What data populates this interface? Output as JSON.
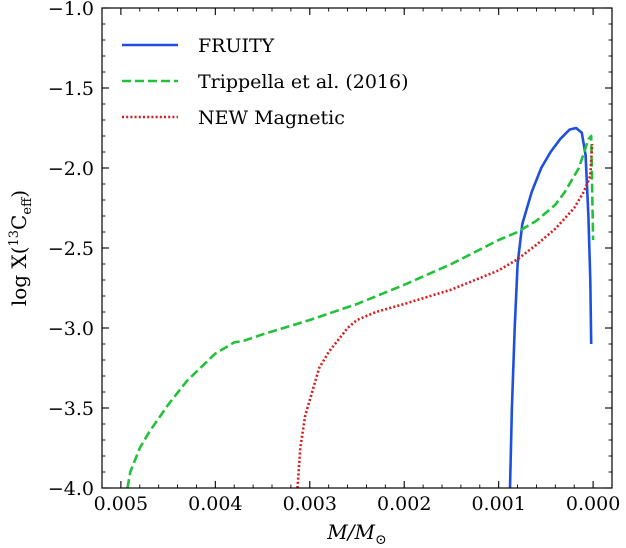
{
  "chart_data": {
    "type": "line",
    "xlabel": "M/M",
    "xlabel_sub": "⊙",
    "ylabel": "log X(",
    "ylabel_sup": "13",
    "ylabel_mid": "C",
    "ylabel_sub": "eff",
    "ylabel_end": ")",
    "xlim": [
      0.0052,
      -0.0002
    ],
    "ylim": [
      -4.0,
      -1.0
    ],
    "x_ticks": [
      0.005,
      0.004,
      0.003,
      0.002,
      0.001,
      0.0
    ],
    "x_tick_labels": [
      "0.005",
      "0.004",
      "0.003",
      "0.002",
      "0.001",
      "0.000"
    ],
    "y_ticks": [
      -4.0,
      -3.5,
      -3.0,
      -2.5,
      -2.0,
      -1.5,
      -1.0
    ],
    "y_tick_labels": [
      "−4.0",
      "−3.5",
      "−3.0",
      "−2.5",
      "−2.0",
      "−1.5",
      "−1.0"
    ],
    "legend_position": "top-left",
    "series": [
      {
        "name": "FRUITY",
        "color": "#1f4fe0",
        "style": "solid",
        "x": [
          0.00088,
          0.00086,
          0.00083,
          0.0008,
          0.00075,
          0.00065,
          0.00055,
          0.00045,
          0.00035,
          0.00025,
          0.00018,
          0.00012,
          8e-05,
          5e-05,
          3e-05,
          2e-05
        ],
        "y": [
          -4.0,
          -3.5,
          -3.0,
          -2.6,
          -2.35,
          -2.15,
          -2.0,
          -1.9,
          -1.82,
          -1.76,
          -1.75,
          -1.78,
          -1.92,
          -2.3,
          -2.7,
          -3.1
        ]
      },
      {
        "name": "Trippella et al. (2016)",
        "color": "#22c13a",
        "style": "dashed",
        "x": [
          0.00493,
          0.0049,
          0.0048,
          0.0047,
          0.0045,
          0.0043,
          0.004,
          0.0038,
          0.0037,
          0.0035,
          0.003,
          0.0025,
          0.002,
          0.0015,
          0.001,
          0.0008,
          0.0006,
          0.0004,
          0.0003,
          0.00015,
          5e-05,
          2e-05,
          0.0
        ],
        "y": [
          -4.0,
          -3.9,
          -3.75,
          -3.65,
          -3.48,
          -3.33,
          -3.16,
          -3.09,
          -3.08,
          -3.04,
          -2.95,
          -2.85,
          -2.73,
          -2.6,
          -2.45,
          -2.4,
          -2.33,
          -2.23,
          -2.15,
          -2.0,
          -1.82,
          -1.8,
          -2.45
        ]
      },
      {
        "name": "NEW Magnetic",
        "color": "#d81b1b",
        "style": "dotted",
        "x": [
          0.00313,
          0.0031,
          0.00305,
          0.003,
          0.0029,
          0.0028,
          0.0026,
          0.0025,
          0.0023,
          0.002,
          0.0015,
          0.001,
          0.0008,
          0.0006,
          0.0004,
          0.0002,
          0.0001,
          3e-05,
          1e-05
        ],
        "y": [
          -4.0,
          -3.75,
          -3.55,
          -3.45,
          -3.25,
          -3.15,
          -3.0,
          -2.95,
          -2.9,
          -2.85,
          -2.76,
          -2.64,
          -2.57,
          -2.48,
          -2.38,
          -2.25,
          -2.15,
          -2.05,
          -1.85
        ]
      }
    ]
  }
}
